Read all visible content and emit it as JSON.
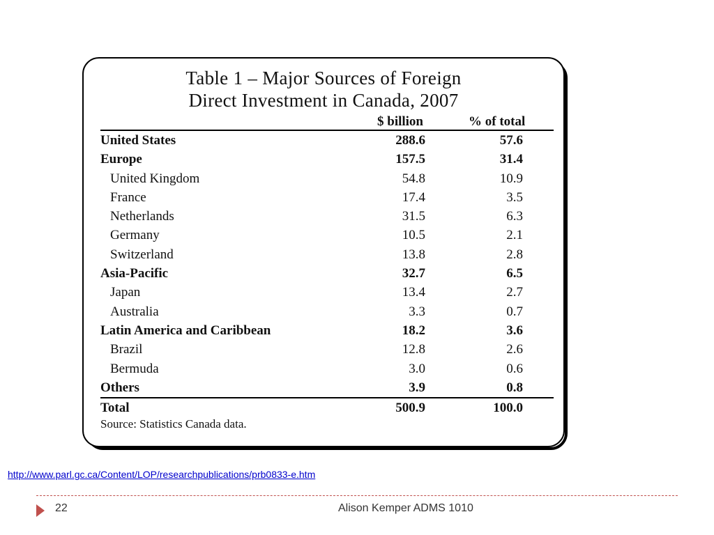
{
  "table": {
    "title_line1": "Table 1 – Major Sources of Foreign",
    "title_line2": "Direct Investment in Canada, 2007",
    "col1_header": "$ billion",
    "col2_header": "% of total",
    "rows": [
      {
        "label": "United States",
        "billion": "288.6",
        "pct": "57.6",
        "bold": true
      },
      {
        "label": "Europe",
        "billion": "157.5",
        "pct": "31.4",
        "bold": true
      },
      {
        "label": "United Kingdom",
        "billion": "54.8",
        "pct": "10.9",
        "bold": false
      },
      {
        "label": "France",
        "billion": "17.4",
        "pct": "3.5",
        "bold": false
      },
      {
        "label": "Netherlands",
        "billion": "31.5",
        "pct": "6.3",
        "bold": false
      },
      {
        "label": "Germany",
        "billion": "10.5",
        "pct": "2.1",
        "bold": false
      },
      {
        "label": "Switzerland",
        "billion": "13.8",
        "pct": "2.8",
        "bold": false
      },
      {
        "label": "Asia-Pacific",
        "billion": "32.7",
        "pct": "6.5",
        "bold": true
      },
      {
        "label": "Japan",
        "billion": "13.4",
        "pct": "2.7",
        "bold": false
      },
      {
        "label": "Australia",
        "billion": "3.3",
        "pct": "0.7",
        "bold": false
      },
      {
        "label": "Latin America and Caribbean",
        "billion": "18.2",
        "pct": "3.6",
        "bold": true
      },
      {
        "label": "Brazil",
        "billion": "12.8",
        "pct": "2.6",
        "bold": false
      },
      {
        "label": "Bermuda",
        "billion": "3.0",
        "pct": "0.6",
        "bold": false
      },
      {
        "label": "Others",
        "billion": "3.9",
        "pct": "0.8",
        "bold": true
      }
    ],
    "total": {
      "label": "Total",
      "billion": "500.9",
      "pct": "100.0"
    },
    "source": "Source: Statistics Canada data."
  },
  "link_url": "http://www.parl.gc.ca/Content/LOP/researchpublications/prb0833-e.htm",
  "footer": {
    "page_number": "22",
    "author": "Alison Kemper ADMS 1010",
    "accent_color": "#c0504d"
  }
}
